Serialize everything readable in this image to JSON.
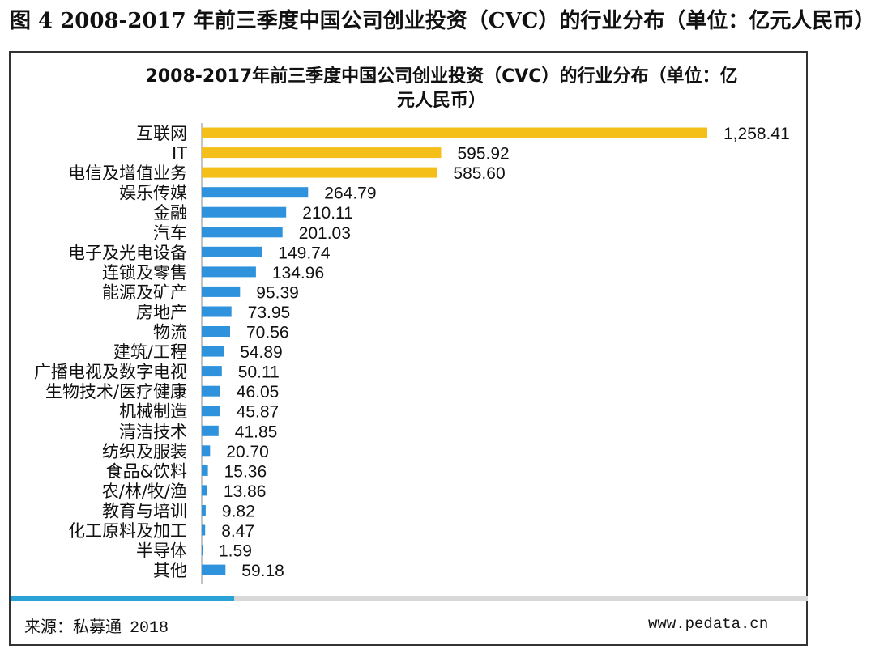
{
  "figure_title": "图 4 2008-2017 年前三季度中国公司创业投资（CVC）的行业分布（单位：亿元人民币）",
  "source": {
    "label": "来源：私募通",
    "year": "2018"
  },
  "website": "www.pedata.cn",
  "progress": {
    "fraction": 0.28
  },
  "colors": {
    "highlight": "#f5bf1a",
    "normal": "#2e93dc",
    "progress": "#29a3d6"
  },
  "chart_data": {
    "type": "bar",
    "orientation": "horizontal",
    "title_lines": [
      "2008-2017年前三季度中国公司创业投资（CVC）的行业分布（单位：亿",
      "元人民币）"
    ],
    "xlabel": "",
    "ylabel": "",
    "xlim": [
      0,
      1258.41
    ],
    "grid": false,
    "categories": [
      "互联网",
      "IT",
      "电信及增值业务",
      "娱乐传媒",
      "金融",
      "汽车",
      "电子及光电设备",
      "连锁及零售",
      "能源及矿产",
      "房地产",
      "物流",
      "建筑/工程",
      "广播电视及数字电视",
      "生物技术/医疗健康",
      "机械制造",
      "清洁技术",
      "纺织及服装",
      "食品&饮料",
      "农/林/牧/渔",
      "教育与培训",
      "化工原料及加工",
      "半导体",
      "其他"
    ],
    "values": [
      1258.41,
      595.92,
      585.6,
      264.79,
      210.11,
      201.03,
      149.74,
      134.96,
      95.39,
      73.95,
      70.56,
      54.89,
      50.11,
      46.05,
      45.87,
      41.85,
      20.7,
      15.36,
      13.86,
      9.82,
      8.47,
      1.59,
      59.18
    ],
    "value_labels": [
      "1,258.41",
      "595.92",
      "585.60",
      "264.79",
      "210.11",
      "201.03",
      "149.74",
      "134.96",
      "95.39",
      "73.95",
      "70.56",
      "54.89",
      "50.11",
      "46.05",
      "45.87",
      "41.85",
      "20.70",
      "15.36",
      "13.86",
      "9.82",
      "8.47",
      "1.59",
      "59.18"
    ],
    "highlighted_count": 3
  }
}
